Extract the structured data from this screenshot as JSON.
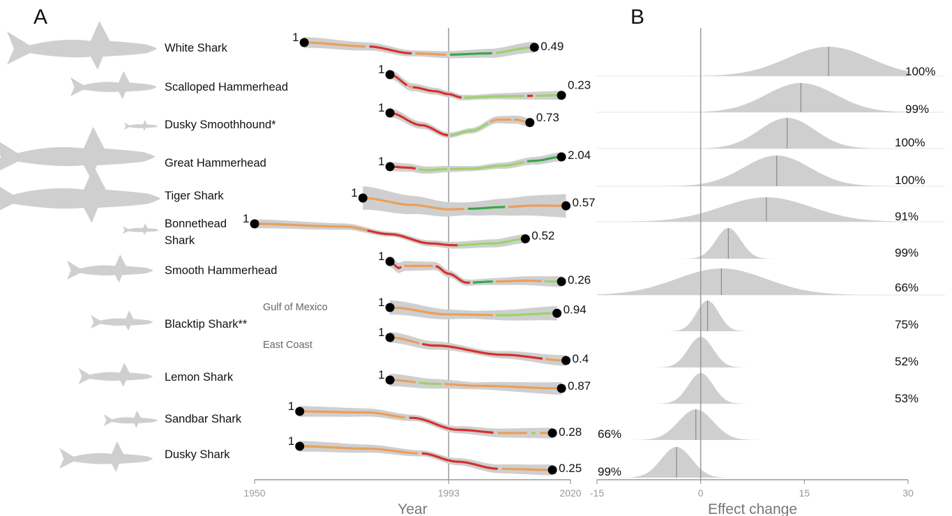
{
  "panels": {
    "a": "A",
    "b": "B"
  },
  "colors": {
    "dark_red": "#d7302b",
    "orange": "#ea9f5a",
    "light_green": "#9bd36a",
    "dark_green": "#3aa64a",
    "ribbon": "#cfcfcf",
    "density": "#cfcfcf",
    "axis": "#999999",
    "dot": "#000000"
  },
  "chart_data": [
    {
      "type": "line",
      "panel": "A",
      "xlabel": "Year",
      "xticks": [
        1950,
        1993,
        2020
      ],
      "xlim": [
        1950,
        2020
      ],
      "reference_line_x": 1993,
      "start_value_label": "1",
      "series": [
        {
          "name": "White Shark",
          "start_year": 1961,
          "end_year": 2012,
          "start_value": 1,
          "end_value": 0.49,
          "end_label": "0.49",
          "profile": [
            [
              1961,
              0
            ],
            [
              1975,
              0.18
            ],
            [
              1985,
              0.5
            ],
            [
              1993,
              0.56
            ],
            [
              2002,
              0.5
            ],
            [
              2012,
              0.22
            ]
          ],
          "segments": [
            [
              1961,
              1975,
              "orange"
            ],
            [
              1975,
              1985,
              "dark_red"
            ],
            [
              1985,
              1993,
              "orange"
            ],
            [
              1993,
              2003,
              "dark_green"
            ],
            [
              2003,
              2012,
              "light_green"
            ]
          ]
        },
        {
          "name": "Scalloped Hammerhead",
          "start_year": 1980,
          "end_year": 2018,
          "start_value": 1,
          "end_value": 0.23,
          "end_label": "0.23",
          "profile": [
            [
              1980,
              0
            ],
            [
              1985,
              0.55
            ],
            [
              1990,
              0.72
            ],
            [
              1993,
              0.85
            ],
            [
              1996,
              1
            ],
            [
              2005,
              0.94
            ],
            [
              2018,
              0.9
            ]
          ],
          "segments": [
            [
              1980,
              1984,
              "dark_red"
            ],
            [
              1984,
              1985,
              "orange"
            ],
            [
              1985,
              1996,
              "dark_red"
            ],
            [
              1996,
              2010,
              "light_green"
            ],
            [
              2010,
              2012,
              "dark_red"
            ],
            [
              2012,
              2018,
              "light_green"
            ]
          ]
        },
        {
          "name": "Dusky Smoothhound*",
          "start_year": 1980,
          "end_year": 2011,
          "start_value": 1,
          "end_value": 0.73,
          "end_label": "0.73",
          "profile": [
            [
              1980,
              0
            ],
            [
              1987,
              0.55
            ],
            [
              1993,
              1
            ],
            [
              1998,
              0.8
            ],
            [
              2004,
              0.3
            ],
            [
              2008,
              0.3
            ],
            [
              2011,
              0.43
            ]
          ],
          "segments": [
            [
              1980,
              1993,
              "dark_red"
            ],
            [
              1993,
              2002,
              "light_green"
            ],
            [
              2002,
              2007,
              "orange"
            ],
            [
              2007,
              2011,
              "orange"
            ]
          ]
        },
        {
          "name": "Great Hammerhead",
          "start_year": 1980,
          "end_year": 2018,
          "start_value": 1,
          "end_value": 2.04,
          "end_label": "2.04",
          "profile": [
            [
              1980,
              0.5
            ],
            [
              1984,
              0.55
            ],
            [
              1988,
              0.68
            ],
            [
              1993,
              0.62
            ],
            [
              1998,
              0.6
            ],
            [
              2005,
              0.45
            ],
            [
              2012,
              0.2
            ],
            [
              2018,
              0
            ]
          ],
          "segments": [
            [
              1980,
              1986,
              "dark_red"
            ],
            [
              1986,
              1993,
              "light_green"
            ],
            [
              1993,
              2010,
              "light_green"
            ],
            [
              2010,
              2018,
              "dark_green"
            ]
          ]
        },
        {
          "name": "Tiger Shark",
          "start_year": 1974,
          "end_year": 2019,
          "start_value": 1,
          "end_value": 0.57,
          "end_label": "0.57",
          "profile": [
            [
              1974,
              0
            ],
            [
              1985,
              0.55
            ],
            [
              1993,
              0.9
            ],
            [
              1998,
              0.85
            ],
            [
              2005,
              0.72
            ],
            [
              2012,
              0.6
            ],
            [
              2019,
              0.62
            ]
          ],
          "segments": [
            [
              1974,
              1997,
              "orange"
            ],
            [
              1997,
              2006,
              "dark_green"
            ],
            [
              2006,
              2019,
              "orange"
            ]
          ]
        },
        {
          "name": "Bonnethead Shark",
          "start_year": 1950,
          "end_year": 2010,
          "start_value": 1,
          "end_value": 0.52,
          "end_label": "0.52",
          "profile": [
            [
              1950,
              0
            ],
            [
              1970,
              0.12
            ],
            [
              1980,
              0.45
            ],
            [
              1989,
              0.85
            ],
            [
              1994,
              0.93
            ],
            [
              2003,
              0.85
            ],
            [
              2010,
              0.65
            ]
          ],
          "segments": [
            [
              1950,
              1975,
              "orange"
            ],
            [
              1975,
              1995,
              "dark_red"
            ],
            [
              1995,
              2010,
              "light_green"
            ]
          ]
        },
        {
          "name": "Smooth Hammerhead",
          "start_year": 1980,
          "end_year": 2018,
          "start_value": 1,
          "end_value": 0.26,
          "end_label": "0.26",
          "profile": [
            [
              1980,
              0
            ],
            [
              1982,
              0.3
            ],
            [
              1983,
              0.2
            ],
            [
              1990,
              0.2
            ],
            [
              1993,
              0.55
            ],
            [
              1997,
              0.95
            ],
            [
              2003,
              0.9
            ],
            [
              2010,
              0.86
            ],
            [
              2018,
              0.9
            ]
          ],
          "segments": [
            [
              1980,
              1983,
              "dark_red"
            ],
            [
              1983,
              1990,
              "orange"
            ],
            [
              1990,
              1998,
              "dark_red"
            ],
            [
              1998,
              2003,
              "dark_green"
            ],
            [
              2003,
              2014,
              "orange"
            ],
            [
              2014,
              2018,
              "light_green"
            ]
          ]
        },
        {
          "name": "Blacktip Shark** (Gulf of Mexico)",
          "start_year": 1980,
          "end_year": 2017,
          "start_value": 1,
          "end_value": 0.94,
          "end_label": "0.94",
          "profile": [
            [
              1980,
              0
            ],
            [
              1993,
              0.9
            ],
            [
              2005,
              1
            ],
            [
              2017,
              0.75
            ]
          ],
          "segments": [
            [
              1980,
              2003,
              "orange"
            ],
            [
              2003,
              2017,
              "light_green"
            ]
          ]
        },
        {
          "name": "Blacktip Shark** (East Coast)",
          "start_year": 1980,
          "end_year": 2019,
          "start_value": 1,
          "end_value": 0.4,
          "end_label": "0.4",
          "profile": [
            [
              1980,
              0
            ],
            [
              1990,
              0.35
            ],
            [
              2005,
              0.75
            ],
            [
              2019,
              1
            ]
          ],
          "segments": [
            [
              1980,
              1987,
              "orange"
            ],
            [
              1987,
              2014,
              "dark_red"
            ],
            [
              2014,
              2019,
              "orange"
            ]
          ]
        },
        {
          "name": "Lemon Shark",
          "start_year": 1980,
          "end_year": 2018,
          "start_value": 1,
          "end_value": 0.87,
          "end_label": "0.87",
          "profile": [
            [
              1980,
              0
            ],
            [
              1990,
              0.45
            ],
            [
              2000,
              0.7
            ],
            [
              2018,
              1
            ]
          ],
          "segments": [
            [
              1980,
              1986,
              "orange"
            ],
            [
              1986,
              1992,
              "light_green"
            ],
            [
              1992,
              2018,
              "orange"
            ]
          ]
        },
        {
          "name": "Sandbar Shark",
          "start_year": 1960,
          "end_year": 2016,
          "start_value": 1,
          "end_value": 0.28,
          "end_label": "0.28",
          "profile": [
            [
              1960,
              0
            ],
            [
              1975,
              0.05
            ],
            [
              1985,
              0.3
            ],
            [
              1995,
              0.85
            ],
            [
              2005,
              1
            ],
            [
              2016,
              1
            ]
          ],
          "segments": [
            [
              1960,
              1984,
              "orange"
            ],
            [
              1984,
              2003,
              "dark_red"
            ],
            [
              2003,
              2011,
              "orange"
            ],
            [
              2011,
              2013,
              "light_green"
            ],
            [
              2013,
              2016,
              "orange"
            ]
          ]
        },
        {
          "name": "Dusky Shark",
          "start_year": 1960,
          "end_year": 2016,
          "start_value": 1,
          "end_value": 0.25,
          "end_label": "0.25",
          "profile": [
            [
              1960,
              0
            ],
            [
              1975,
              0.1
            ],
            [
              1987,
              0.3
            ],
            [
              1995,
              0.65
            ],
            [
              2004,
              0.95
            ],
            [
              2016,
              1
            ]
          ],
          "segments": [
            [
              1960,
              1987,
              "orange"
            ],
            [
              1987,
              2004,
              "dark_red"
            ],
            [
              2004,
              2016,
              "orange"
            ]
          ]
        }
      ]
    },
    {
      "type": "density",
      "panel": "B",
      "xlabel": "Effect change",
      "xticks": [
        -15,
        0,
        15,
        30
      ],
      "xlim": [
        -15,
        30
      ],
      "reference_line_x": 0,
      "series": [
        {
          "name": "White Shark",
          "mean": 18.5,
          "sd": 6.0,
          "prob": "100%"
        },
        {
          "name": "Scalloped Hammerhead",
          "mean": 14.5,
          "sd": 5.0,
          "prob": "99%"
        },
        {
          "name": "Dusky Smoothhound*",
          "mean": 12.5,
          "sd": 4.0,
          "prob": "100%"
        },
        {
          "name": "Great Hammerhead",
          "mean": 11.0,
          "sd": 4.8,
          "prob": "100%"
        },
        {
          "name": "Tiger Shark",
          "mean": 9.5,
          "sd": 6.5,
          "prob": "91%"
        },
        {
          "name": "Bonnethead Shark",
          "mean": 4.0,
          "sd": 1.8,
          "prob": "99%"
        },
        {
          "name": "Smooth Hammerhead",
          "mean": 3.0,
          "sd": 6.5,
          "prob": "66%"
        },
        {
          "name": "Blacktip Shark** (Gulf of Mexico)",
          "mean": 1.0,
          "sd": 1.6,
          "prob": "75%"
        },
        {
          "name": "Blacktip Shark** (East Coast)",
          "mean": 0.0,
          "sd": 1.8,
          "prob": "52%"
        },
        {
          "name": "Lemon Shark",
          "mean": 0.0,
          "sd": 1.8,
          "prob": "53%"
        },
        {
          "name": "Sandbar Shark",
          "mean": -0.7,
          "sd": 2.5,
          "prob": "66%"
        },
        {
          "name": "Dusky Shark",
          "mean": -3.5,
          "sd": 2.2,
          "prob": "99%"
        }
      ]
    }
  ],
  "labels": {
    "species": [
      "White Shark",
      "Scalloped Hammerhead",
      "Dusky Smoothhound*",
      "Great Hammerhead",
      "Tiger Shark",
      "Bonnethead",
      "Shark",
      "Smooth Hammerhead",
      "Blacktip Shark**",
      "Lemon Shark",
      "Sandbar Shark",
      "Dusky Shark"
    ],
    "regions": [
      "Gulf of Mexico",
      "East Coast"
    ]
  },
  "silhouettes": [
    "shark-silhouette"
  ]
}
